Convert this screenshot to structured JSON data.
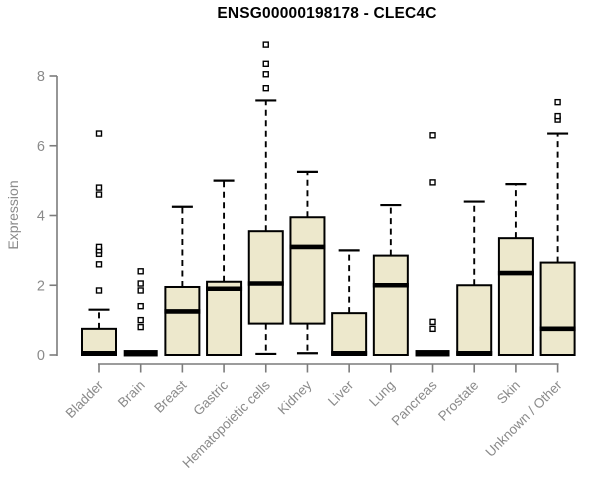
{
  "page": {
    "background": "#ffffff"
  },
  "chart_data": {
    "type": "boxplot",
    "title": "ENSG00000198178 - CLEC4C",
    "ylabel": "Expression",
    "xlabel": "",
    "ylim": [
      0,
      8.95
    ],
    "yticks": [
      0,
      2,
      4,
      6,
      8
    ],
    "grid": false,
    "legend": false,
    "box_fill_color": "#EDE8CC",
    "box_border_color": "#000000",
    "axis_color": "#7c7c7c",
    "label_color": "#8a8a8a",
    "title_color": "#000000",
    "categories": [
      "Bladder",
      "Brain",
      "Breast",
      "Gastric",
      "Hematopoietic cells",
      "Kidney",
      "Liver",
      "Lung",
      "Pancreas",
      "Prostate",
      "Skin",
      "Unknown / Other"
    ],
    "boxes": [
      {
        "label": "Bladder",
        "q1": 0,
        "median": 0.05,
        "q3": 0.75,
        "whisker_low": 0,
        "whisker_high": 1.3,
        "outliers": [
          1.85,
          2.6,
          2.9,
          3.0,
          3.1,
          4.6,
          4.8,
          6.35
        ]
      },
      {
        "label": "Brain",
        "q1": 0,
        "median": 0.05,
        "q3": 0,
        "whisker_low": 0,
        "whisker_high": 0,
        "outliers": [
          0.8,
          1.0,
          1.4,
          1.85,
          2.05,
          2.4
        ]
      },
      {
        "label": "Breast",
        "q1": 0,
        "median": 1.25,
        "q3": 1.95,
        "whisker_low": 0,
        "whisker_high": 4.25,
        "outliers": []
      },
      {
        "label": "Gastric",
        "q1": 0,
        "median": 1.9,
        "q3": 2.1,
        "whisker_low": 0,
        "whisker_high": 5.0,
        "outliers": []
      },
      {
        "label": "Hematopoietic cells",
        "q1": 0.9,
        "median": 2.05,
        "q3": 3.55,
        "whisker_low": 0.03,
        "whisker_high": 7.3,
        "outliers": [
          7.65,
          8.05,
          8.35,
          8.9
        ]
      },
      {
        "label": "Kidney",
        "q1": 0.9,
        "median": 3.1,
        "q3": 3.95,
        "whisker_low": 0.05,
        "whisker_high": 5.25,
        "outliers": []
      },
      {
        "label": "Liver",
        "q1": 0,
        "median": 0.05,
        "q3": 1.2,
        "whisker_low": 0,
        "whisker_high": 3.0,
        "outliers": []
      },
      {
        "label": "Lung",
        "q1": 0,
        "median": 2.0,
        "q3": 2.85,
        "whisker_low": 0,
        "whisker_high": 4.3,
        "outliers": []
      },
      {
        "label": "Pancreas",
        "q1": 0,
        "median": 0.05,
        "q3": 0,
        "whisker_low": 0,
        "whisker_high": 0,
        "outliers": [
          0.75,
          0.95,
          4.95,
          6.3
        ]
      },
      {
        "label": "Prostate",
        "q1": 0,
        "median": 0.05,
        "q3": 2.0,
        "whisker_low": 0,
        "whisker_high": 4.4,
        "outliers": []
      },
      {
        "label": "Skin",
        "q1": 0,
        "median": 2.35,
        "q3": 3.35,
        "whisker_low": 0,
        "whisker_high": 4.9,
        "outliers": []
      },
      {
        "label": "Unknown / Other",
        "q1": 0,
        "median": 0.75,
        "q3": 2.65,
        "whisker_low": 0,
        "whisker_high": 6.35,
        "outliers": [
          6.75,
          6.85,
          7.25
        ]
      }
    ]
  }
}
